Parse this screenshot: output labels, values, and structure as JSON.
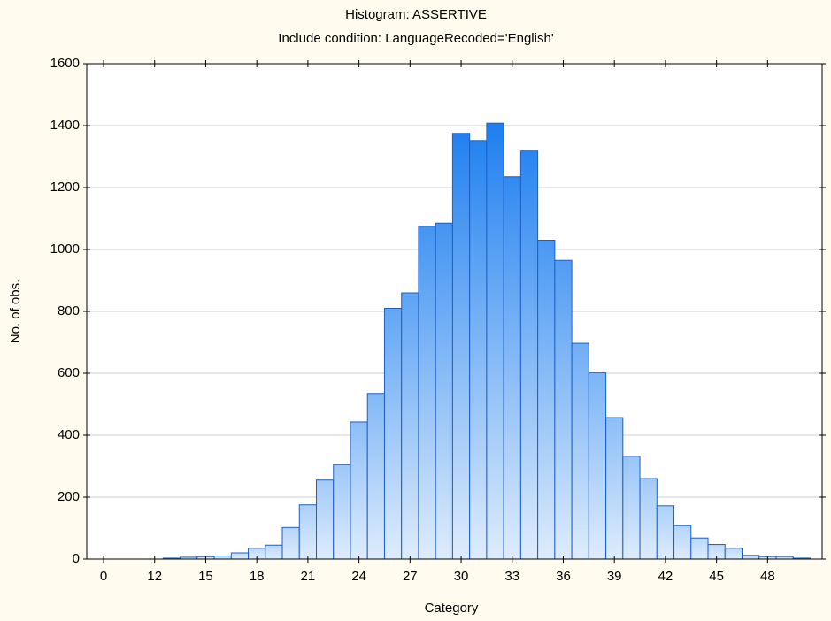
{
  "chart_data": {
    "type": "bar",
    "title": "Histogram: ASSERTIVE",
    "subtitle": "Include condition: LanguageRecoded='English'",
    "x_label": "Category",
    "y_label": "No. of obs.",
    "categories": [
      "0",
      null,
      null,
      "12",
      null,
      null,
      "15",
      null,
      null,
      "18",
      null,
      null,
      "21",
      null,
      null,
      "24",
      null,
      null,
      "27",
      null,
      null,
      "30",
      null,
      null,
      "33",
      null,
      null,
      "36",
      null,
      null,
      "39",
      null,
      null,
      "42",
      null,
      null,
      "45",
      null,
      null,
      "48",
      null,
      null
    ],
    "values": [
      0,
      0,
      0,
      0,
      3,
      6,
      8,
      10,
      20,
      35,
      45,
      102,
      175,
      255,
      305,
      443,
      535,
      810,
      860,
      1075,
      1085,
      1375,
      1352,
      1408,
      1235,
      1318,
      1030,
      965,
      697,
      602,
      457,
      332,
      260,
      172,
      108,
      68,
      47,
      35,
      12,
      8,
      8,
      3
    ],
    "color": "#1e7ff0",
    "ylim": [
      0,
      1600
    ],
    "yticks": [
      0,
      200,
      400,
      600,
      800,
      1000,
      1200,
      1400,
      1600
    ],
    "grid": true
  }
}
